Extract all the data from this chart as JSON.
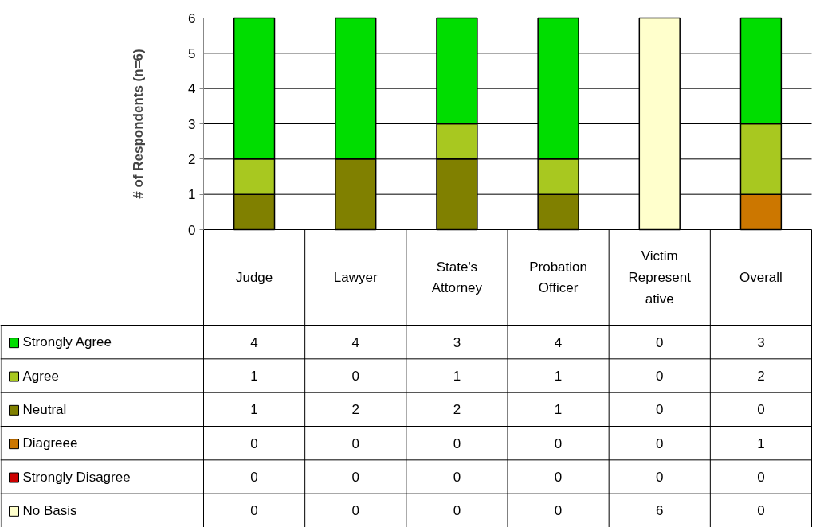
{
  "chart_data": {
    "type": "bar",
    "stacked": true,
    "ylabel": "# of Respondents (n=6)",
    "categories": [
      "Judge",
      "Lawyer",
      "State's\nAttorney",
      "Probation\nOfficer",
      "Victim\nRepresent\native",
      "Overall"
    ],
    "series": [
      {
        "name": "No Basis",
        "color": "#ffffcc",
        "values": [
          0,
          0,
          0,
          0,
          6,
          0
        ]
      },
      {
        "name": "Strongly Disagree",
        "color": "#cc0000",
        "values": [
          0,
          0,
          0,
          0,
          0,
          0
        ]
      },
      {
        "name": "Diagreee",
        "color": "#cc7700",
        "values": [
          0,
          0,
          0,
          0,
          0,
          1
        ]
      },
      {
        "name": "Neutral",
        "color": "#808000",
        "values": [
          1,
          2,
          2,
          1,
          0,
          0
        ]
      },
      {
        "name": "Agree",
        "color": "#a8c820",
        "values": [
          1,
          0,
          1,
          1,
          0,
          2
        ]
      },
      {
        "name": "Strongly Agree",
        "color": "#00dd00",
        "values": [
          4,
          4,
          3,
          4,
          0,
          3
        ]
      }
    ],
    "ylim": [
      0,
      6
    ],
    "yticks": [
      0,
      1,
      2,
      3,
      4,
      5,
      6
    ],
    "grid": "y",
    "legend": "bottom left",
    "data_labels": true
  }
}
